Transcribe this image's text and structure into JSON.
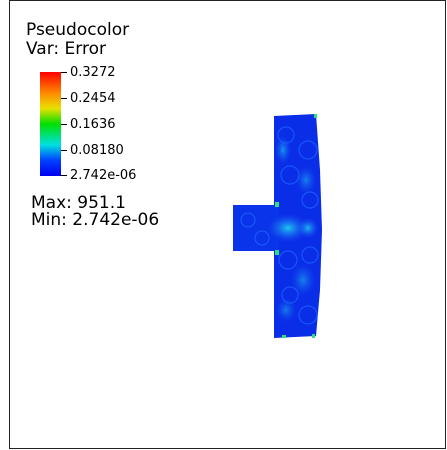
{
  "legend": {
    "title": "Pseudocolor",
    "variable": "Var: Error",
    "ticks": [
      "0.3272",
      "0.2454",
      "0.1636",
      "0.08180",
      "2.742e-06"
    ],
    "max_text": "Max:  951.1",
    "min_text": "Min:  2.742e-06"
  },
  "colors": {
    "colormap": [
      "#ff0000",
      "#ff8800",
      "#e8e000",
      "#00e000",
      "#00e0e0",
      "#0040ff",
      "#0000ee"
    ],
    "mesh_base": "#0a2ee8",
    "highlight": "#22d8f0"
  }
}
